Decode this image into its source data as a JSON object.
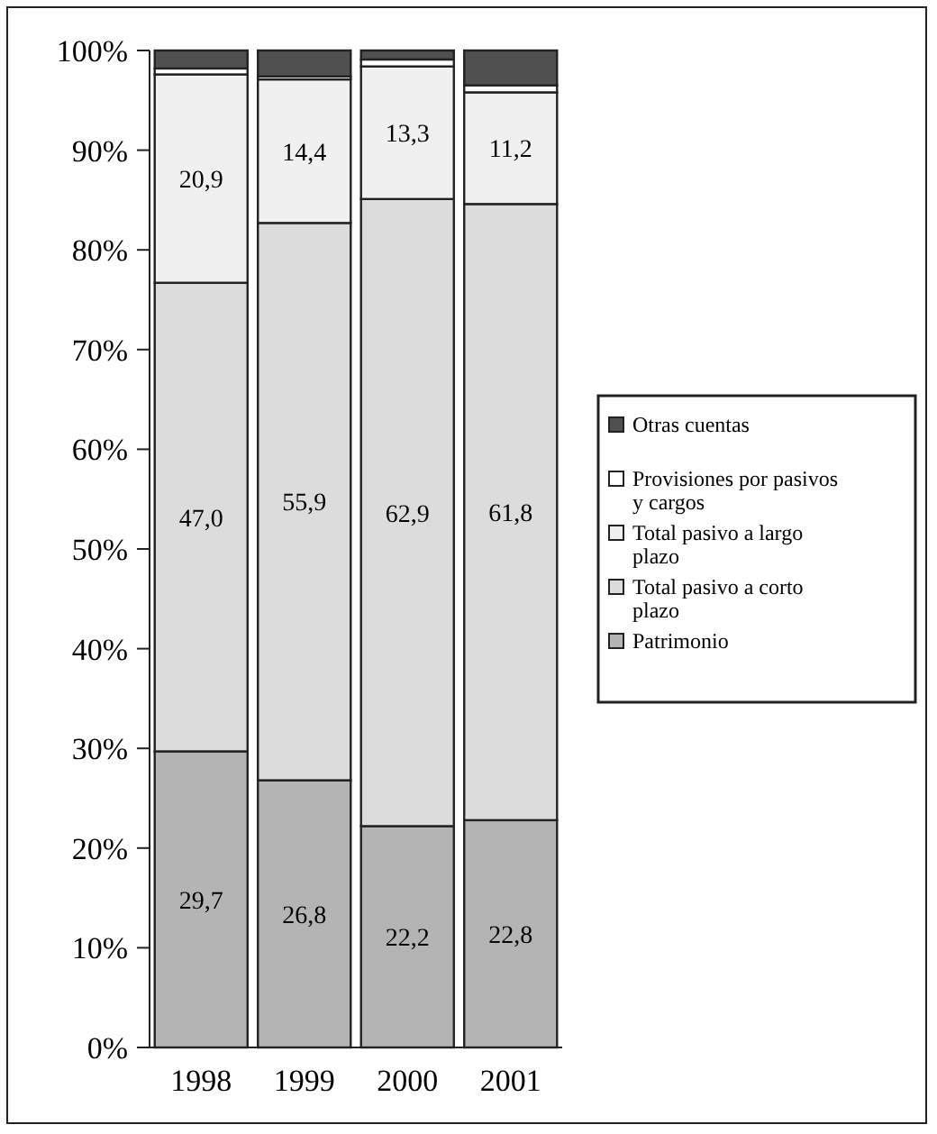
{
  "chart_data": {
    "type": "bar",
    "stacked": true,
    "categories": [
      "1998",
      "1999",
      "2000",
      "2001"
    ],
    "ylim": [
      0,
      100
    ],
    "yticks": [
      {
        "value": 0,
        "label": "0%"
      },
      {
        "value": 10,
        "label": "10%"
      },
      {
        "value": 20,
        "label": "20%"
      },
      {
        "value": 30,
        "label": "30%"
      },
      {
        "value": 40,
        "label": "40%"
      },
      {
        "value": 50,
        "label": "50%"
      },
      {
        "value": 60,
        "label": "60%"
      },
      {
        "value": 70,
        "label": "70%"
      },
      {
        "value": 80,
        "label": "80%"
      },
      {
        "value": 90,
        "label": "90%"
      },
      {
        "value": 100,
        "label": "100%"
      }
    ],
    "grid": false,
    "legend": "right",
    "series": [
      {
        "name": "Patrimonio",
        "color": "#b4b4b4",
        "values": [
          29.7,
          26.8,
          22.2,
          22.8
        ],
        "value_labels": [
          "29,7",
          "26,8",
          "22,2",
          "22,8"
        ]
      },
      {
        "name": "Total pasivo a corto plazo",
        "color": "#dcdcdc",
        "values": [
          47.0,
          55.9,
          62.9,
          61.8
        ],
        "value_labels": [
          "47,0",
          "55,9",
          "62,9",
          "61,8"
        ]
      },
      {
        "name": "Total pasivo a largo plazo",
        "color": "#f0f0f0",
        "values": [
          20.9,
          14.4,
          13.3,
          11.2
        ],
        "value_labels": [
          "20,9",
          "14,4",
          "13,3",
          "11,2"
        ]
      },
      {
        "name": "Provisiones por pasivos y cargos",
        "color": "#ffffff",
        "values": [
          0.6,
          0.3,
          0.7,
          0.7
        ]
      },
      {
        "name": "Otras cuentas",
        "color": "#505050",
        "values": [
          1.8,
          2.6,
          0.9,
          3.5
        ]
      }
    ]
  }
}
